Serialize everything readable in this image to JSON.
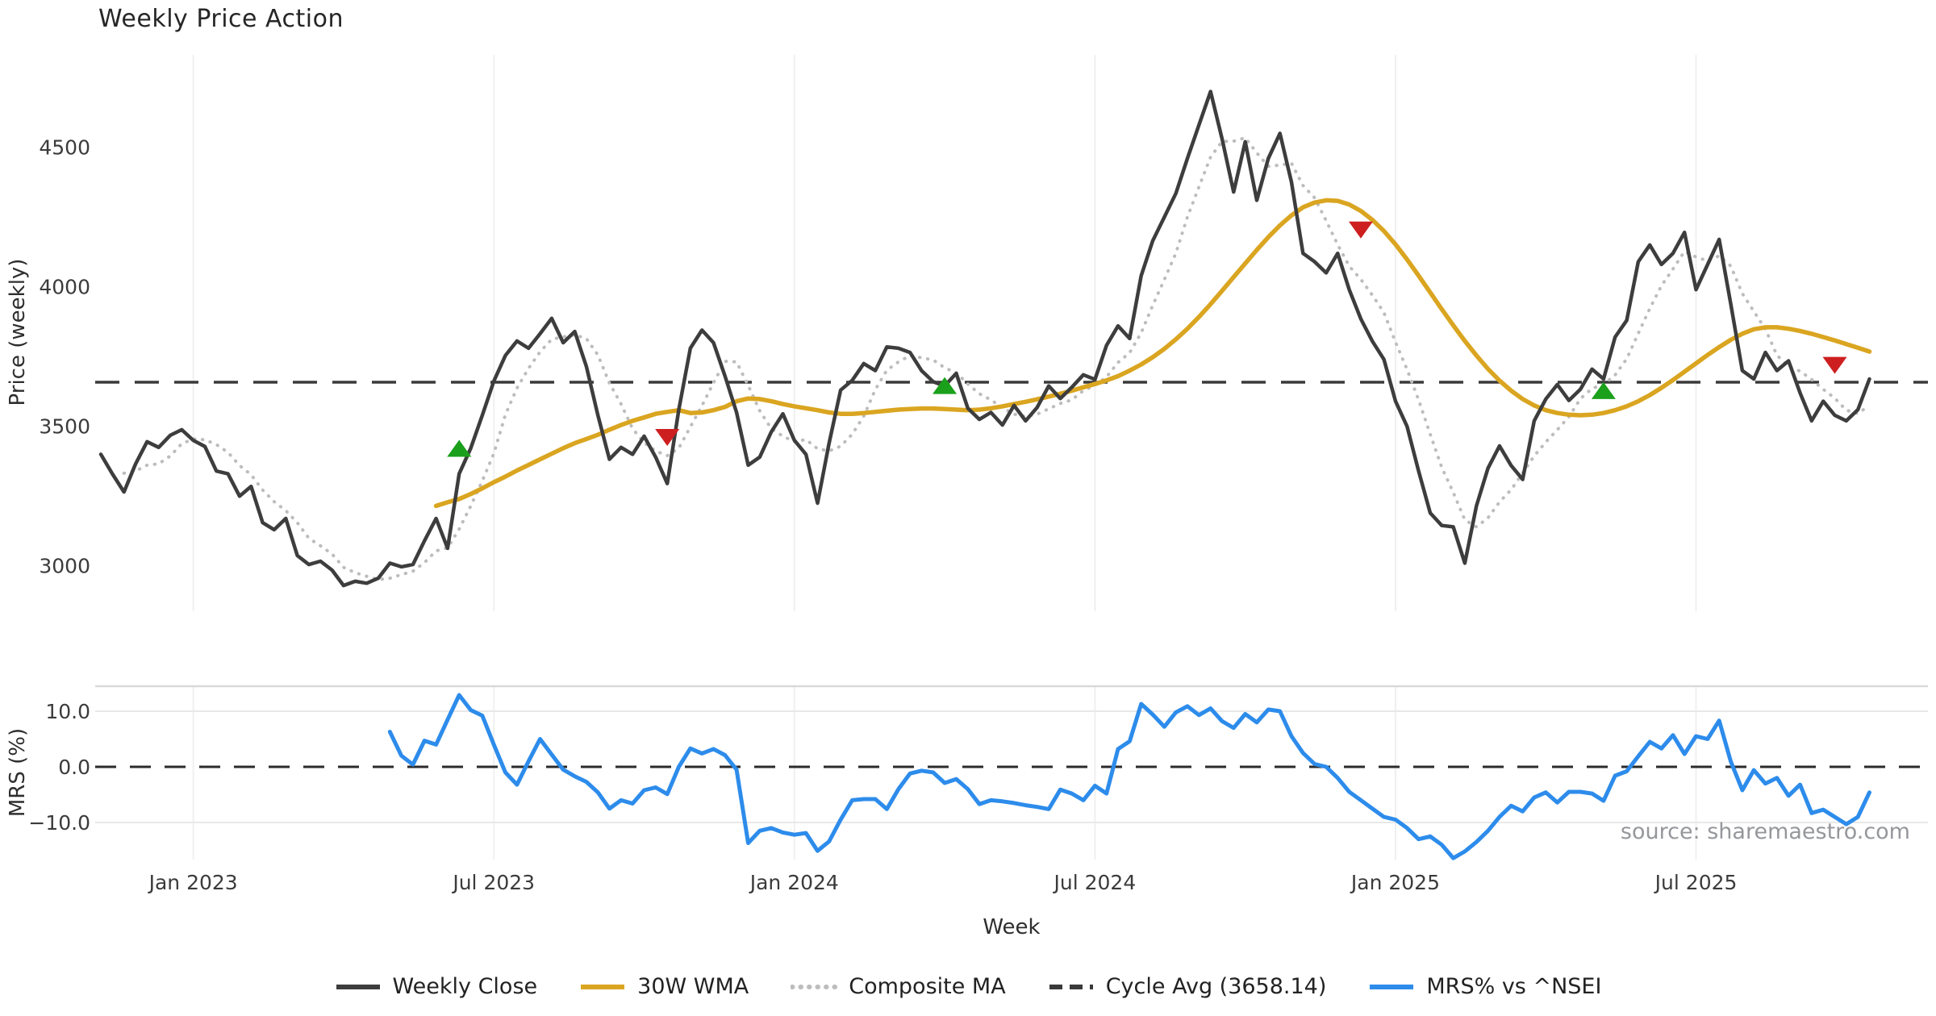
{
  "title": "Weekly Price Action",
  "source_note": "source: sharemaestro.com",
  "colors": {
    "weekly_close": "#3d3d3d",
    "wma_30w": "#DAA520",
    "composite_ma": "#bdbdbd",
    "cycle_avg": "#3a3a3a",
    "mrs": "#2D8CEB",
    "buy_marker": "#1BA01B",
    "sell_marker": "#CE1F20",
    "gridline": "#f0f0f0",
    "mrs_gridline": "#e8e8e8",
    "mrs_top_spine": "#d9d9d9"
  },
  "price_panel": {
    "ylabel": "Price (weekly)",
    "ytick_values": [
      4500,
      4000,
      3500,
      3000
    ],
    "ytick_labels": [
      "4500",
      "4000",
      "3500",
      "3000"
    ],
    "cycle_avg_value": 3658.14
  },
  "mrs_panel": {
    "ylabel": "MRS (%)",
    "ytick_values": [
      10,
      0,
      -10
    ],
    "ytick_labels": [
      "10.0",
      "0.0",
      "−10.0"
    ],
    "zero_line_value": 0.0
  },
  "x_axis": {
    "label": "Week",
    "ticks": [
      {
        "label": "Jan 2023",
        "week": 8
      },
      {
        "label": "Jul 2023",
        "week": 34
      },
      {
        "label": "Jan 2024",
        "week": 60
      },
      {
        "label": "Jul 2024",
        "week": 86
      },
      {
        "label": "Jan 2025",
        "week": 112
      },
      {
        "label": "Jul 2025",
        "week": 138
      }
    ]
  },
  "legend": [
    {
      "label": "Weekly Close",
      "style": "solid",
      "color": "#3d3d3d"
    },
    {
      "label": "30W WMA",
      "style": "solid",
      "color": "#DAA520"
    },
    {
      "label": "Composite MA",
      "style": "dotted",
      "color": "#bdbdbd"
    },
    {
      "label": "Cycle Avg (3658.14)",
      "style": "dashed",
      "color": "#3a3a3a"
    },
    {
      "label": "MRS% vs ^NSEI",
      "style": "solid",
      "color": "#2D8CEB"
    }
  ],
  "chart_data": [
    {
      "type": "line",
      "panel": "price",
      "title": "Weekly Price Action",
      "xlabel": "Week",
      "ylabel": "Price (weekly)",
      "x_start_date": "2022-11-07",
      "x_step_days": 7,
      "weeks_total": 154,
      "ylim": [
        2832,
        4840
      ],
      "yticks": [
        3000,
        3500,
        4000,
        4500
      ],
      "grid": "vertical-only",
      "cycle_avg": 3658.14,
      "series": [
        {
          "name": "Weekly Close",
          "style": "solid",
          "start_week": 0,
          "values": [
            3400,
            3330,
            3265,
            3365,
            3445,
            3425,
            3468,
            3488,
            3450,
            3428,
            3340,
            3330,
            3250,
            3285,
            3155,
            3130,
            3170,
            3037,
            3005,
            3017,
            2985,
            2930,
            2945,
            2938,
            2956,
            3010,
            2997,
            3005,
            3090,
            3170,
            3063,
            3330,
            3422,
            3540,
            3662,
            3754,
            3806,
            3780,
            3832,
            3887,
            3800,
            3840,
            3715,
            3540,
            3382,
            3425,
            3400,
            3465,
            3390,
            3295,
            3560,
            3780,
            3845,
            3800,
            3680,
            3550,
            3361,
            3390,
            3480,
            3545,
            3450,
            3400,
            3225,
            3440,
            3630,
            3665,
            3725,
            3700,
            3785,
            3780,
            3765,
            3700,
            3660,
            3645,
            3690,
            3565,
            3525,
            3550,
            3505,
            3575,
            3520,
            3568,
            3645,
            3600,
            3640,
            3685,
            3668,
            3790,
            3860,
            3815,
            4040,
            4165,
            4250,
            4335,
            4460,
            4580,
            4700,
            4530,
            4340,
            4520,
            4310,
            4460,
            4550,
            4375,
            4120,
            4090,
            4050,
            4120,
            3990,
            3885,
            3805,
            3740,
            3590,
            3500,
            3340,
            3190,
            3145,
            3140,
            3010,
            3215,
            3350,
            3430,
            3360,
            3310,
            3520,
            3598,
            3650,
            3593,
            3633,
            3705,
            3670,
            3820,
            3880,
            4090,
            4150,
            4080,
            4120,
            4195,
            3990,
            4080,
            4170,
            3940,
            3700,
            3670,
            3765,
            3700,
            3735,
            3620,
            3520,
            3590,
            3540,
            3520,
            3560,
            3670
          ]
        },
        {
          "name": "30W WMA",
          "style": "solid",
          "start_week": 29,
          "values": [
            3215,
            3228,
            3240,
            3258,
            3278,
            3300,
            3320,
            3342,
            3362,
            3382,
            3402,
            3422,
            3440,
            3455,
            3470,
            3488,
            3505,
            3520,
            3532,
            3545,
            3552,
            3558,
            3548,
            3550,
            3558,
            3570,
            3590,
            3600,
            3598,
            3590,
            3580,
            3572,
            3565,
            3558,
            3550,
            3545,
            3545,
            3548,
            3552,
            3556,
            3560,
            3562,
            3564,
            3564,
            3562,
            3560,
            3558,
            3560,
            3565,
            3572,
            3580,
            3588,
            3597,
            3607,
            3617,
            3628,
            3640,
            3652,
            3665,
            3680,
            3700,
            3722,
            3748,
            3778,
            3812,
            3850,
            3892,
            3938,
            3986,
            4035,
            4084,
            4132,
            4178,
            4220,
            4256,
            4285,
            4302,
            4310,
            4308,
            4295,
            4272,
            4240,
            4200,
            4152,
            4098,
            4040,
            3980,
            3920,
            3862,
            3806,
            3754,
            3706,
            3664,
            3628,
            3598,
            3575,
            3558,
            3548,
            3542,
            3540,
            3542,
            3548,
            3558,
            3572,
            3590,
            3612,
            3638,
            3666,
            3696,
            3726,
            3756,
            3784,
            3810,
            3832,
            3848,
            3855,
            3855,
            3850,
            3842,
            3832,
            3820,
            3808,
            3795,
            3782,
            3768
          ]
        },
        {
          "name": "Composite MA",
          "style": "dotted",
          "start_week": 2,
          "values": [
            3332,
            3340,
            3361,
            3366,
            3394,
            3438,
            3455,
            3452,
            3435,
            3407,
            3360,
            3327,
            3272,
            3230,
            3198,
            3155,
            3099,
            3072,
            3043,
            2995,
            2976,
            2963,
            2951,
            2956,
            2969,
            2981,
            3012,
            3054,
            3065,
            3132,
            3215,
            3305,
            3403,
            3542,
            3637,
            3708,
            3767,
            3812,
            3821,
            3828,
            3815,
            3756,
            3655,
            3580,
            3492,
            3442,
            3412,
            3395,
            3422,
            3498,
            3574,
            3656,
            3733,
            3731,
            3647,
            3556,
            3492,
            3465,
            3445,
            3453,
            3420,
            3412,
            3429,
            3472,
            3537,
            3632,
            3701,
            3731,
            3754,
            3746,
            3738,
            3710,
            3692,
            3652,
            3617,
            3595,
            3567,
            3544,
            3535,
            3544,
            3563,
            3582,
            3595,
            3628,
            3648,
            3677,
            3729,
            3764,
            3835,
            3934,
            4026,
            4121,
            4250,
            4358,
            4465,
            4521,
            4522,
            4534,
            4480,
            4432,
            4436,
            4443,
            4363,
            4319,
            4237,
            4151,
            4074,
            4027,
            3970,
            3908,
            3802,
            3704,
            3595,
            3472,
            3353,
            3263,
            3165,
            3140,
            3172,
            3229,
            3273,
            3333,
            3394,
            3444,
            3488,
            3534,
            3599,
            3636,
            3650,
            3684,
            3742,
            3833,
            3922,
            4004,
            4064,
            4127,
            4107,
            4093,
            4111,
            4075,
            3976,
            3912,
            3849,
            3755,
            3714,
            3698,
            3668,
            3633,
            3601,
            3558,
            3546,
            3576
          ]
        }
      ],
      "buy_signals": [
        {
          "week": 31,
          "price": 3420
        },
        {
          "week": 73,
          "price": 3645
        },
        {
          "week": 130,
          "price": 3627
        }
      ],
      "sell_signals": [
        {
          "week": 49,
          "price": 3462
        },
        {
          "week": 109,
          "price": 4205
        },
        {
          "week": 150,
          "price": 3720
        }
      ]
    },
    {
      "type": "line",
      "panel": "mrs",
      "ylabel": "MRS (%)",
      "ylim": [
        -16.7,
        14.5
      ],
      "yticks": [
        -10,
        0,
        10
      ],
      "zero_line": 0.0,
      "series": [
        {
          "name": "MRS% vs ^NSEI",
          "style": "solid",
          "start_week": 25,
          "values": [
            6.3,
            2.0,
            0.4,
            4.7,
            4.0,
            8.5,
            12.9,
            10.2,
            9.2,
            4.0,
            -1.0,
            -3.2,
            1.0,
            5.0,
            2.2,
            -0.5,
            -1.7,
            -2.7,
            -4.6,
            -7.5,
            -6.0,
            -6.6,
            -4.2,
            -3.7,
            -4.9,
            0.0,
            3.3,
            2.4,
            3.2,
            2.1,
            -0.5,
            -13.7,
            -11.5,
            -11.0,
            -11.8,
            -12.2,
            -11.9,
            -15.1,
            -13.4,
            -9.5,
            -6.0,
            -5.8,
            -5.8,
            -7.6,
            -4.0,
            -1.2,
            -0.7,
            -1.0,
            -2.9,
            -2.2,
            -4.0,
            -6.7,
            -6.0,
            -6.2,
            -6.5,
            -6.9,
            -7.2,
            -7.6,
            -4.1,
            -4.8,
            -6.0,
            -3.4,
            -4.8,
            3.2,
            4.6,
            11.3,
            9.4,
            7.2,
            9.8,
            10.9,
            9.3,
            10.5,
            8.2,
            7.0,
            9.5,
            8.0,
            10.3,
            10.0,
            5.5,
            2.5,
            0.5,
            0.0,
            -2.0,
            -4.5,
            -6.0,
            -7.5,
            -9.0,
            -9.5,
            -11.0,
            -13.0,
            -12.5,
            -14.0,
            -16.4,
            -15.2,
            -13.5,
            -11.5,
            -9.0,
            -7.0,
            -8.0,
            -5.5,
            -4.6,
            -6.4,
            -4.5,
            -4.5,
            -4.8,
            -6.1,
            -1.6,
            -0.8,
            1.9,
            4.5,
            3.3,
            5.7,
            2.3,
            5.5,
            5.0,
            8.3,
            1.0,
            -4.2,
            -0.6,
            -3.0,
            -2.0,
            -5.2,
            -3.2,
            -8.3,
            -7.7,
            -9.0,
            -10.3,
            -9.0,
            -4.6
          ]
        }
      ]
    }
  ]
}
